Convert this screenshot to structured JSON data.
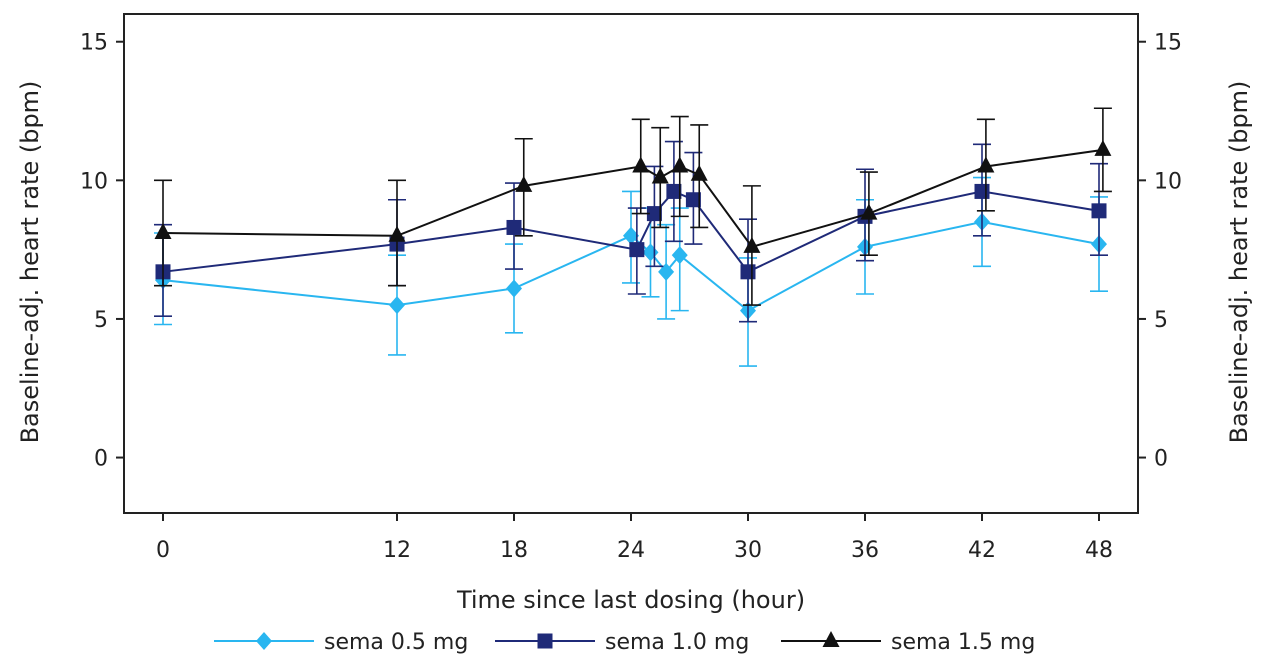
{
  "chart_data": {
    "type": "line",
    "title": "",
    "xlabel": "Time since last dosing (hour)",
    "ylabel": "Baseline-adj. heart rate (bpm)",
    "ylabel_right": "Baseline-adj. heart rate (bpm)",
    "xlim": [
      -2,
      50
    ],
    "ylim": [
      -2,
      16
    ],
    "x_ticks": [
      0,
      12,
      18,
      24,
      30,
      36,
      42,
      48
    ],
    "y_ticks": [
      0,
      5,
      10,
      15
    ],
    "grid": false,
    "legend_position": "bottom",
    "series": [
      {
        "name": "sema 0.5 mg",
        "color": "#29b6f0",
        "marker": "diamond",
        "points": [
          {
            "x": 0,
            "y": 6.4,
            "lo": 4.8,
            "hi": 8.1
          },
          {
            "x": 12,
            "y": 5.5,
            "lo": 3.7,
            "hi": 7.3
          },
          {
            "x": 18,
            "y": 6.1,
            "lo": 4.5,
            "hi": 7.7
          },
          {
            "x": 24,
            "y": 8.0,
            "lo": 6.3,
            "hi": 9.6
          },
          {
            "x": 25,
            "y": 7.4,
            "lo": 5.8,
            "hi": 9.0
          },
          {
            "x": 25.8,
            "y": 6.7,
            "lo": 5.0,
            "hi": 8.4
          },
          {
            "x": 26.5,
            "y": 7.3,
            "lo": 5.3,
            "hi": 9.0
          },
          {
            "x": 30,
            "y": 5.3,
            "lo": 3.3,
            "hi": 7.2
          },
          {
            "x": 36,
            "y": 7.6,
            "lo": 5.9,
            "hi": 9.3
          },
          {
            "x": 42,
            "y": 8.5,
            "lo": 6.9,
            "hi": 10.1
          },
          {
            "x": 48,
            "y": 7.7,
            "lo": 6.0,
            "hi": 9.4
          }
        ]
      },
      {
        "name": "sema 1.0 mg",
        "color": "#1f2a78",
        "marker": "square",
        "points": [
          {
            "x": 0,
            "y": 6.7,
            "lo": 5.1,
            "hi": 8.4
          },
          {
            "x": 12,
            "y": 7.7,
            "lo": 6.2,
            "hi": 9.3
          },
          {
            "x": 18,
            "y": 8.3,
            "lo": 6.8,
            "hi": 9.9
          },
          {
            "x": 24.3,
            "y": 7.5,
            "lo": 5.9,
            "hi": 9.0
          },
          {
            "x": 25.2,
            "y": 8.8,
            "lo": 6.9,
            "hi": 10.5
          },
          {
            "x": 26.2,
            "y": 9.6,
            "lo": 7.8,
            "hi": 11.4
          },
          {
            "x": 27.2,
            "y": 9.3,
            "lo": 7.7,
            "hi": 11.0
          },
          {
            "x": 30,
            "y": 6.7,
            "lo": 4.9,
            "hi": 8.6
          },
          {
            "x": 36,
            "y": 8.7,
            "lo": 7.1,
            "hi": 10.4
          },
          {
            "x": 42,
            "y": 9.6,
            "lo": 8.0,
            "hi": 11.3
          },
          {
            "x": 48,
            "y": 8.9,
            "lo": 7.3,
            "hi": 10.6
          }
        ]
      },
      {
        "name": "sema 1.5 mg",
        "color": "#111111",
        "marker": "triangle",
        "points": [
          {
            "x": 0,
            "y": 8.1,
            "lo": 6.2,
            "hi": 10.0
          },
          {
            "x": 12,
            "y": 8.0,
            "lo": 6.2,
            "hi": 10.0
          },
          {
            "x": 18.5,
            "y": 9.8,
            "lo": 8.0,
            "hi": 11.5
          },
          {
            "x": 24.5,
            "y": 10.5,
            "lo": 8.8,
            "hi": 12.2
          },
          {
            "x": 25.5,
            "y": 10.1,
            "lo": 8.3,
            "hi": 11.9
          },
          {
            "x": 26.5,
            "y": 10.5,
            "lo": 8.7,
            "hi": 12.3
          },
          {
            "x": 27.5,
            "y": 10.2,
            "lo": 8.3,
            "hi": 12.0
          },
          {
            "x": 30.2,
            "y": 7.6,
            "lo": 5.5,
            "hi": 9.8
          },
          {
            "x": 36.2,
            "y": 8.8,
            "lo": 7.3,
            "hi": 10.3
          },
          {
            "x": 42.2,
            "y": 10.5,
            "lo": 8.9,
            "hi": 12.2
          },
          {
            "x": 48.2,
            "y": 11.1,
            "lo": 9.6,
            "hi": 12.6
          }
        ]
      }
    ]
  }
}
